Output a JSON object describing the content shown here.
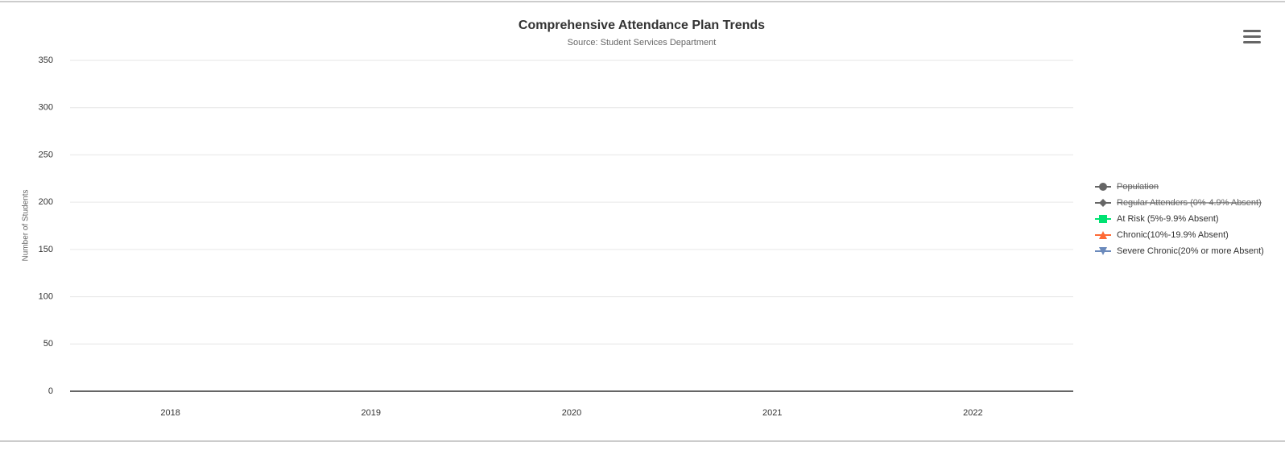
{
  "chart_data": {
    "type": "line",
    "title": "Comprehensive Attendance Plan Trends",
    "subtitle": "Source: Student Services Department",
    "y_label": "Number of Students",
    "categories": [
      "2018",
      "2019",
      "2020",
      "2021",
      "2022"
    ],
    "series": [
      {
        "name": "Population",
        "color": "#666666",
        "marker": "circle",
        "visible": false,
        "values": [
          null,
          null,
          null,
          null,
          null
        ]
      },
      {
        "name": "Regular Attenders (0%-4.9% Absent)",
        "color": "#666666",
        "marker": "diamond",
        "visible": false,
        "values": [
          null,
          null,
          null,
          null,
          null
        ]
      },
      {
        "name": "At Risk (5%-9.9% Absent)",
        "color": "#00e272",
        "marker": "square",
        "visible": true,
        "values": [
          null,
          null,
          null,
          null,
          null
        ]
      },
      {
        "name": "Chronic(10%-19.9% Absent)",
        "color": "#fe6a35",
        "marker": "triangle",
        "visible": true,
        "values": [
          null,
          null,
          null,
          null,
          null
        ]
      },
      {
        "name": "Severe Chronic(20% or more Absent)",
        "color": "#6b8abc",
        "marker": "triangle-down",
        "visible": true,
        "values": [
          null,
          null,
          null,
          null,
          null
        ]
      }
    ],
    "ylim": [
      0,
      350
    ],
    "yticks": [
      0,
      50,
      100,
      150,
      200,
      250,
      300,
      350
    ],
    "grid": true,
    "legend": "right"
  }
}
